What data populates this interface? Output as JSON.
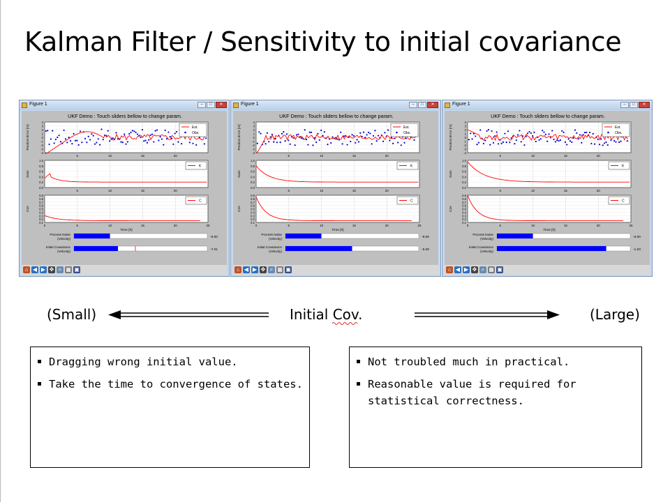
{
  "slide": {
    "title": "Kalman Filter  / Sensitivity to initial covariance"
  },
  "windows": [
    {
      "title": "Figure 1",
      "plot_title": "UKF Demo : Touch sliders bellow to change param.",
      "process_noise_label_1": "Process Noise",
      "process_noise_label_2": "(Velocity)",
      "process_noise_value": "-9.00",
      "process_noise_fraction": 0.27,
      "init_cov_label_1": "Initial Covariance",
      "init_cov_label_2": "(Velocity)",
      "init_cov_value": "-7.01",
      "init_cov_fraction": 0.33
    },
    {
      "title": "Figure 1",
      "plot_title": "UKF Demo : Touch sliders bellow to change param.",
      "process_noise_label_1": "Process Noise",
      "process_noise_label_2": "(Velocity)",
      "process_noise_value": "-9.00",
      "process_noise_fraction": 0.27,
      "init_cov_label_1": "Initial Covariance",
      "init_cov_label_2": "(Velocity)",
      "init_cov_value": "-5.00",
      "init_cov_fraction": 0.5
    },
    {
      "title": "Figure 1",
      "plot_title": "UKF Demo : Touch sliders bellow to change param.",
      "process_noise_label_1": "Process Noise",
      "process_noise_label_2": "(Velocity)",
      "process_noise_value": "-9.00",
      "process_noise_fraction": 0.27,
      "init_cov_label_1": "Initial Covariance",
      "init_cov_label_2": "(Velocity)",
      "init_cov_value": "-1.03",
      "init_cov_fraction": 0.82
    }
  ],
  "plot_common": {
    "pos_ylabel": "Position Error [m]",
    "gain_ylabel": "Gain",
    "cov_ylabel": "Cov",
    "xlabel": "Time [h]",
    "legend_est": "Est.",
    "legend_obs": "Obs.",
    "legend_k": "K",
    "legend_c": "C",
    "x_ticks": [
      "0",
      "5",
      "10",
      "15",
      "20",
      "25"
    ],
    "pos_yticks": [
      "4",
      "3",
      "2",
      "1",
      "0",
      "-1",
      "-2",
      "-3",
      "-4"
    ],
    "gain_yticks": [
      "1.0",
      "0.8",
      "0.6",
      "0.4",
      "0.2",
      "0.0"
    ],
    "cov_yticks": [
      "0.9",
      "0.8",
      "0.7",
      "0.6",
      "0.5",
      "0.4",
      "0.3",
      "0.2",
      "0.1"
    ]
  },
  "arrow_row": {
    "small_label": "(Small)",
    "center_label": "Initial Cov.",
    "large_label": "(Large)"
  },
  "boxes": {
    "left": {
      "items": [
        "Dragging wrong initial value.",
        "Take the time to convergence of states."
      ]
    },
    "right": {
      "items": [
        "Not troubled much in practical.",
        "Reasonable value is required for\nstatistical correctness."
      ]
    }
  },
  "colors": {
    "estimate": "#ff0000",
    "observation": "#0000cc",
    "slider_fill": "#0000ff",
    "window_frame": "#c6d9ee"
  }
}
